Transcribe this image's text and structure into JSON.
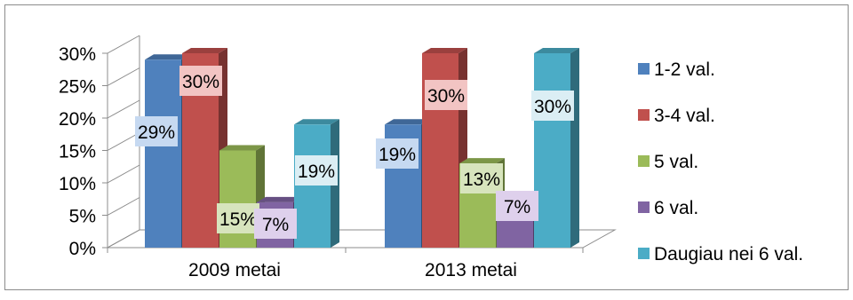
{
  "chart_data": {
    "type": "bar",
    "categories": [
      "2009 metai",
      "2013 metai"
    ],
    "series": [
      {
        "name": "1-2 val.",
        "values": [
          29,
          19
        ],
        "labels": [
          "29%",
          "19%"
        ]
      },
      {
        "name": "3-4 val.",
        "values": [
          30,
          30
        ],
        "labels": [
          "30%",
          "30%"
        ]
      },
      {
        "name": "5 val.",
        "values": [
          15,
          13
        ],
        "labels": [
          "15%",
          "13%"
        ]
      },
      {
        "name": "6 val.",
        "values": [
          7,
          7
        ],
        "labels": [
          "7%",
          "7%"
        ]
      },
      {
        "name": "Daugiau nei 6 val.",
        "values": [
          19,
          30
        ],
        "labels": [
          "19%",
          "30%"
        ]
      }
    ],
    "yticks": [
      "0%",
      "5%",
      "10%",
      "15%",
      "20%",
      "25%",
      "30%"
    ],
    "ylim": [
      0,
      30
    ],
    "grid": false,
    "legend": "right",
    "colors": [
      "#4f81bd",
      "#c0504d",
      "#9bbb59",
      "#8064a2",
      "#4bacc6"
    ],
    "label_backgrounds": [
      "#c6d9f1",
      "#f2c4c3",
      "#d7e4bd",
      "#ded0ec",
      "#dbeef4"
    ]
  }
}
